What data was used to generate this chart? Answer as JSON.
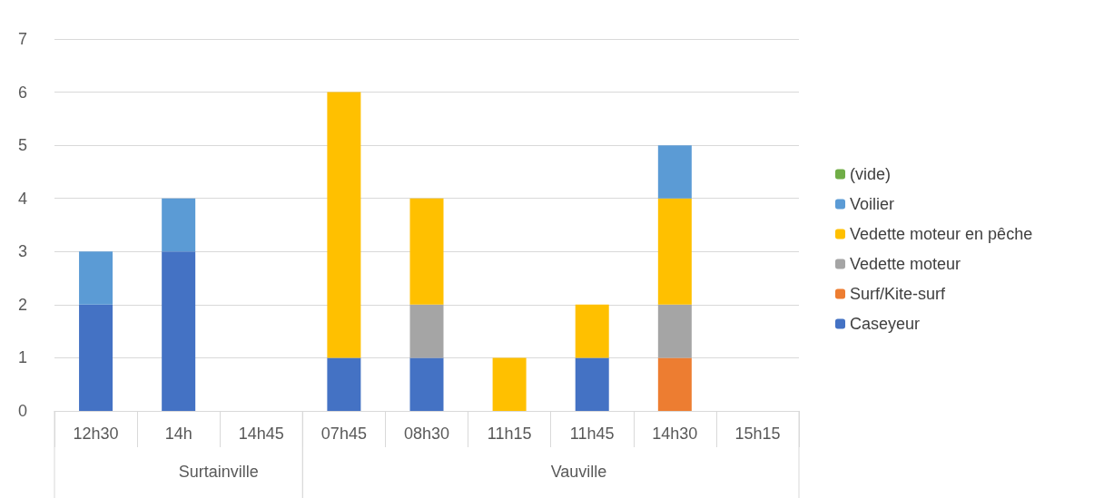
{
  "chart_data": {
    "type": "bar",
    "stacked": true,
    "categories": [
      "12h30",
      "14h",
      "14h45",
      "07h45",
      "08h30",
      "11h15",
      "11h45",
      "14h30",
      "15h15"
    ],
    "series": [
      {
        "name": "Caseyeur",
        "color": "#4472c4",
        "values": [
          2,
          3,
          null,
          1,
          1,
          null,
          1,
          null,
          null
        ]
      },
      {
        "name": "Surf/Kite-surf",
        "color": "#ed7d31",
        "values": [
          null,
          null,
          null,
          null,
          null,
          null,
          null,
          1,
          null
        ]
      },
      {
        "name": "Vedette moteur",
        "color": "#a5a5a5",
        "values": [
          null,
          null,
          null,
          null,
          1,
          null,
          null,
          1,
          null
        ]
      },
      {
        "name": "Vedette moteur en pêche",
        "color": "#ffc000",
        "values": [
          null,
          null,
          null,
          5,
          2,
          1,
          1,
          2,
          null
        ]
      },
      {
        "name": "Voilier",
        "color": "#5b9bd5",
        "values": [
          1,
          1,
          null,
          null,
          null,
          null,
          null,
          1,
          null
        ]
      },
      {
        "name": "(vide)",
        "color": "#70ad47",
        "values": [
          null,
          null,
          null,
          null,
          null,
          null,
          null,
          null,
          null
        ]
      }
    ],
    "annotations": [
      "Surtainville",
      "Vauville"
    ],
    "ylim": [
      0,
      7
    ],
    "yticks": [
      0,
      1,
      2,
      3,
      4,
      5,
      6,
      7
    ],
    "grid": "y",
    "legend": "right"
  }
}
